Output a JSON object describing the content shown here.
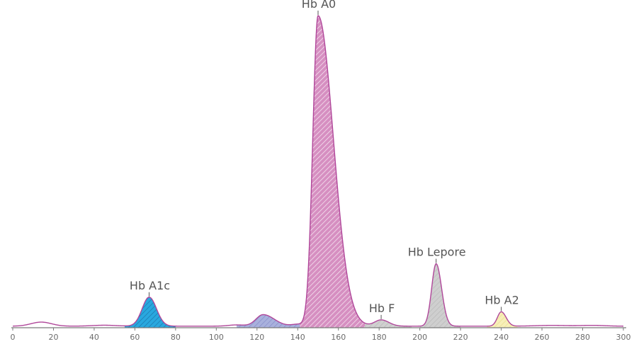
{
  "chart_data": {
    "type": "area",
    "title": "",
    "xlabel": "",
    "ylabel": "",
    "xlim": [
      0,
      300
    ],
    "ylim": [
      0,
      100
    ],
    "grid": false,
    "x_ticks": [
      0,
      20,
      40,
      60,
      80,
      100,
      120,
      140,
      160,
      180,
      200,
      220,
      240,
      260,
      280,
      300
    ],
    "tick_labels": [
      "0",
      "20",
      "40",
      "60",
      "80",
      "100",
      "120",
      "140",
      "160",
      "180",
      "200",
      "220",
      "240",
      "260",
      "280",
      "300"
    ],
    "line_color": "#b0479a",
    "baseline": 0.5,
    "background_bumps": [
      {
        "center": 14,
        "height": 1.3,
        "sigma": 5
      },
      {
        "center": 45,
        "height": 0.3,
        "sigma": 6
      },
      {
        "center": 110,
        "height": 0.4,
        "sigma": 4
      },
      {
        "center": 140,
        "height": 0.6,
        "sigma": 3
      },
      {
        "center": 265,
        "height": 0.25,
        "sigma": 8
      },
      {
        "center": 285,
        "height": 0.25,
        "sigma": 6
      }
    ],
    "peaks": [
      {
        "name": "Hb A1c",
        "labeled": true,
        "center": 67,
        "height": 9.3,
        "sigma_left": 3.4,
        "sigma_right": 3.6,
        "range": [
          55,
          80
        ],
        "fill": "#29a8df",
        "hatch": "#1b6fa3"
      },
      {
        "name": "",
        "labeled": false,
        "center": 123,
        "height": 3.7,
        "sigma_left": 3.5,
        "sigma_right": 5.5,
        "range": [
          110,
          142
        ],
        "fill": "#a9b1dd",
        "hatch": "#7f86c4"
      },
      {
        "name": "Hb A0",
        "labeled": true,
        "center": 150,
        "height": 99.5,
        "sigma_left": 2.6,
        "sigma_right": 7.5,
        "range": [
          141,
          181
        ],
        "fill": "#d68fc1",
        "hatch": "#ffffff"
      },
      {
        "name": "Hb F",
        "labeled": true,
        "center": 181,
        "height": 2.0,
        "sigma_left": 3.2,
        "sigma_right": 3.8,
        "range": [
          173,
          196
        ],
        "fill": "#d0d0d0",
        "hatch": "#b5b5b5"
      },
      {
        "name": "Hb Lepore",
        "labeled": true,
        "center": 208,
        "height": 20.0,
        "sigma_left": 2.2,
        "sigma_right": 2.7,
        "range": [
          200,
          220
        ],
        "fill": "#cfcfcf",
        "hatch": "#b5b5b5"
      },
      {
        "name": "Hb A2",
        "labeled": true,
        "center": 240,
        "height": 4.6,
        "sigma_left": 1.9,
        "sigma_right": 2.4,
        "range": [
          233,
          248
        ],
        "fill": "#f7efb8",
        "hatch": "#e8dc8a"
      }
    ]
  }
}
